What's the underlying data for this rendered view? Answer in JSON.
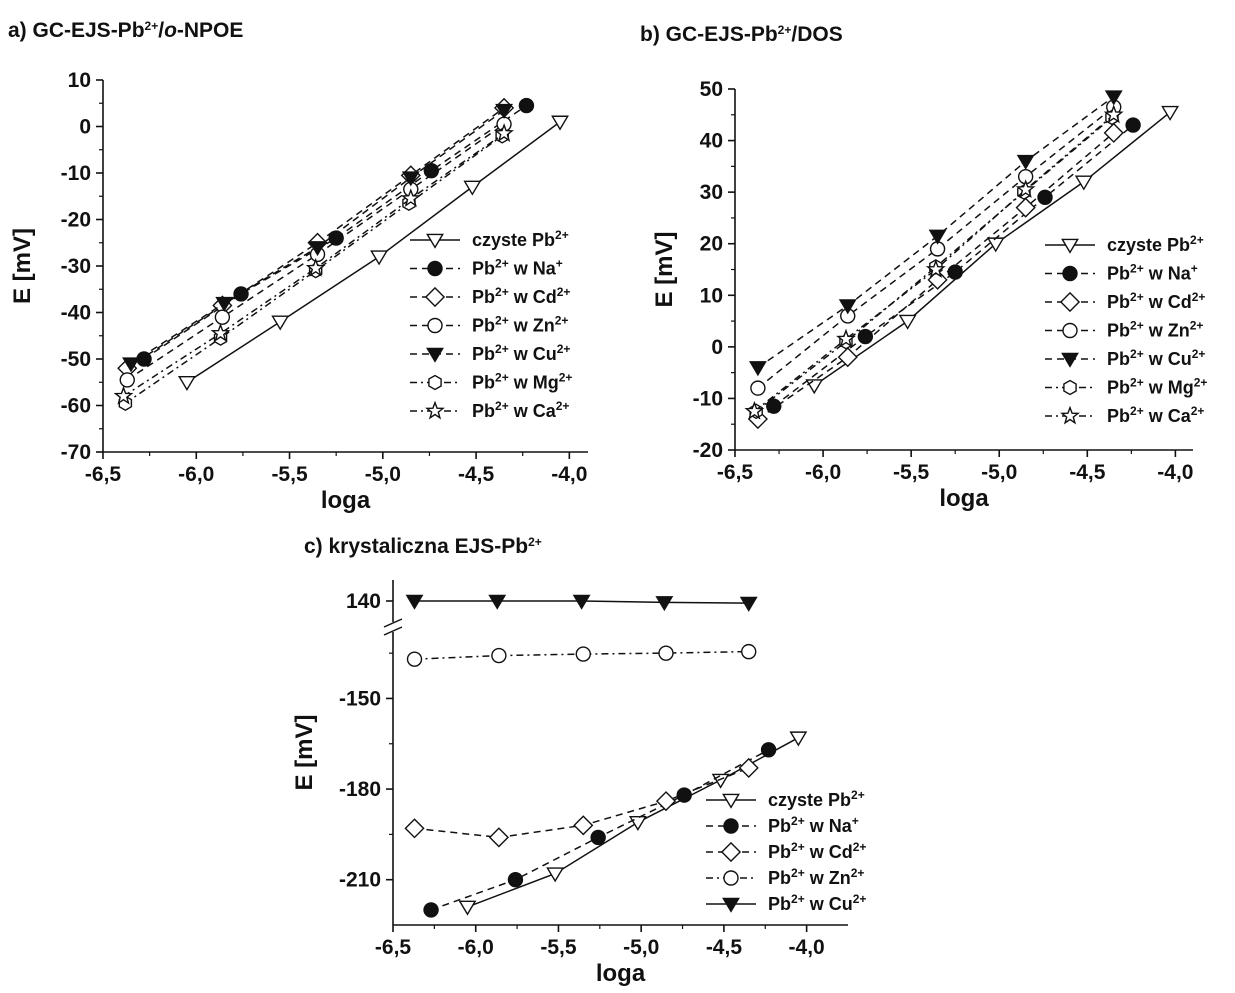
{
  "chart_data": [
    {
      "id": "a",
      "type": "line",
      "title": {
        "main": "a) GC-EJS-Pb",
        "sup": "2+",
        "after": "/",
        "ital": "o",
        "end": "-NPOE"
      },
      "xlabel": "loga",
      "ylabel": "E [mV]",
      "xlim": [
        -6.5,
        -3.9
      ],
      "ylim": [
        -70,
        10
      ],
      "xticks": [
        -6.5,
        -6.0,
        -5.5,
        -5.0,
        -4.5,
        -4.0
      ],
      "xtick_labels": [
        "-6,5",
        "-6,0",
        "-5,5",
        "-5,0",
        "-4,5",
        "-4,0"
      ],
      "yticks": [
        -70,
        -60,
        -50,
        -40,
        -30,
        -20,
        -10,
        0,
        10
      ],
      "ytick_labels": [
        "-70",
        "-60",
        "-50",
        "-40",
        "-30",
        "-20",
        "-10",
        "0",
        "10"
      ],
      "legend_placement": "right",
      "series": [
        {
          "name": "czyste Pb",
          "sup": "2+",
          "marker": "triangle-down-open",
          "dash": "solid",
          "x": [
            -6.05,
            -5.55,
            -5.02,
            -4.52,
            -4.05
          ],
          "y": [
            -55,
            -42,
            -28,
            -13,
            1
          ]
        },
        {
          "name": "Pb",
          "sup": "2+",
          "name2": " w Na",
          "sup2": "+",
          "marker": "circle-filled",
          "dash": "dash",
          "x": [
            -6.28,
            -5.76,
            -5.25,
            -4.74,
            -4.23
          ],
          "y": [
            -50,
            -36,
            -24,
            -9.5,
            4.5
          ]
        },
        {
          "name": "Pb",
          "sup": "2+",
          "name2": " w Cd",
          "sup2": "2+",
          "marker": "diamond-open",
          "dash": "dash",
          "x": [
            -6.37,
            -5.86,
            -5.35,
            -4.85,
            -4.35
          ],
          "y": [
            -52,
            -38.5,
            -25,
            -10.5,
            4
          ]
        },
        {
          "name": "Pb",
          "sup": "2+",
          "name2": " w Zn",
          "sup2": "2+",
          "marker": "circle-open",
          "dash": "dash",
          "x": [
            -6.37,
            -5.86,
            -5.35,
            -4.85,
            -4.35
          ],
          "y": [
            -54.5,
            -41,
            -27.5,
            -13.5,
            0.5
          ]
        },
        {
          "name": "Pb",
          "sup": "2+",
          "name2": " w Cu",
          "sup2": "2+",
          "marker": "triangle-down-filled",
          "dash": "dash",
          "x": [
            -6.35,
            -5.85,
            -5.35,
            -4.85,
            -4.35
          ],
          "y": [
            -51,
            -38,
            -26,
            -11,
            3.5
          ]
        },
        {
          "name": "Pb",
          "sup": "2+",
          "name2": " w Mg",
          "sup2": "2+",
          "marker": "hexagon-open",
          "dash": "dashdot",
          "x": [
            -6.38,
            -5.87,
            -5.36,
            -4.86,
            -4.36
          ],
          "y": [
            -59.5,
            -45.5,
            -31,
            -16.5,
            -2
          ]
        },
        {
          "name": "Pb",
          "sup": "2+",
          "name2": " w Ca",
          "sup2": "2+",
          "marker": "star-open",
          "dash": "dashdot",
          "x": [
            -6.39,
            -5.87,
            -5.36,
            -4.85,
            -4.35
          ],
          "y": [
            -58,
            -44.5,
            -30.5,
            -15.5,
            -1.5
          ]
        }
      ]
    },
    {
      "id": "b",
      "type": "line",
      "title": {
        "main": "b) GC-EJS-Pb",
        "sup": "2+",
        "after": "/DOS"
      },
      "xlabel": "loga",
      "ylabel": "E [mV]",
      "xlim": [
        -6.5,
        -3.9
      ],
      "ylim": [
        -20,
        50
      ],
      "xticks": [
        -6.5,
        -6.0,
        -5.5,
        -5.0,
        -4.5,
        -4.0
      ],
      "xtick_labels": [
        "-6,5",
        "-6,0",
        "-5,5",
        "-5,0",
        "-4,5",
        "-4,0"
      ],
      "yticks": [
        -20,
        -10,
        0,
        10,
        20,
        30,
        40,
        50
      ],
      "ytick_labels": [
        "-20",
        "-10",
        "0",
        "10",
        "20",
        "30",
        "40",
        "50"
      ],
      "legend_placement": "right",
      "series": [
        {
          "name": "czyste Pb",
          "sup": "2+",
          "marker": "triangle-down-open",
          "dash": "solid",
          "x": [
            -6.05,
            -5.52,
            -5.02,
            -4.52,
            -4.03
          ],
          "y": [
            -7.5,
            5,
            20,
            32,
            45.5
          ]
        },
        {
          "name": "Pb",
          "sup": "2+",
          "name2": " w Na",
          "sup2": "+",
          "marker": "circle-filled",
          "dash": "dash",
          "x": [
            -6.28,
            -5.76,
            -5.25,
            -4.74,
            -4.24
          ],
          "y": [
            -11.5,
            2,
            14.5,
            29,
            43
          ]
        },
        {
          "name": "Pb",
          "sup": "2+",
          "name2": " w Cd",
          "sup2": "2+",
          "marker": "diamond-open",
          "dash": "dash",
          "x": [
            -6.37,
            -5.86,
            -5.35,
            -4.85,
            -4.35
          ],
          "y": [
            -14,
            -2,
            13,
            27,
            41.5
          ]
        },
        {
          "name": "Pb",
          "sup": "2+",
          "name2": " w Zn",
          "sup2": "2+",
          "marker": "circle-open",
          "dash": "dash",
          "x": [
            -6.37,
            -5.86,
            -5.35,
            -4.85,
            -4.35
          ],
          "y": [
            -8,
            6,
            19,
            33,
            46.5
          ]
        },
        {
          "name": "Pb",
          "sup": "2+",
          "name2": " w Cu",
          "sup2": "2+",
          "marker": "triangle-down-filled",
          "dash": "dash",
          "x": [
            -6.37,
            -5.86,
            -5.35,
            -4.85,
            -4.35
          ],
          "y": [
            -4,
            8,
            21.5,
            36,
            48.5
          ]
        },
        {
          "name": "Pb",
          "sup": "2+",
          "name2": " w Mg",
          "sup2": "2+",
          "marker": "hexagon-open",
          "dash": "dashdot",
          "x": [
            -6.38,
            -5.87,
            -5.36,
            -4.86,
            -4.36
          ],
          "y": [
            -12.5,
            1,
            15.5,
            30,
            44.5
          ]
        },
        {
          "name": "Pb",
          "sup": "2+",
          "name2": " w Ca",
          "sup2": "2+",
          "marker": "star-open",
          "dash": "dashdot",
          "x": [
            -6.39,
            -5.87,
            -5.36,
            -4.85,
            -4.35
          ],
          "y": [
            -12.5,
            1.5,
            15,
            30.5,
            45
          ]
        }
      ]
    },
    {
      "id": "c",
      "type": "line",
      "title": {
        "main": "c) krystaliczna EJS-Pb",
        "sup": "2+"
      },
      "xlabel": "loga",
      "ylabel": "E [mV]",
      "xlim": [
        -6.5,
        -3.75
      ],
      "axis_break": "between 140 and -150",
      "upper_ylim": [
        137,
        143
      ],
      "ylim": [
        -225,
        -128
      ],
      "xticks": [
        -6.5,
        -6.0,
        -5.5,
        -5.0,
        -4.5,
        -4.0
      ],
      "xtick_labels": [
        "-6,5",
        "-6,0",
        "-5,5",
        "-5,0",
        "-4,5",
        "-4,0"
      ],
      "yticks_upper": [
        140
      ],
      "ytick_labels_upper": [
        "140"
      ],
      "yticks": [
        -150,
        -180,
        -210
      ],
      "ytick_labels": [
        "-150",
        "-180",
        "-210"
      ],
      "legend_placement": "lower-right",
      "series": [
        {
          "name": "czyste Pb",
          "sup": "2+",
          "marker": "triangle-down-open",
          "dash": "solid",
          "axis": "lower",
          "x": [
            -6.05,
            -5.52,
            -5.02,
            -4.52,
            -4.05
          ],
          "y": [
            -219,
            -208,
            -191,
            -177,
            -163
          ]
        },
        {
          "name": "Pb",
          "sup": "2+",
          "name2": " w Na",
          "sup2": "+",
          "marker": "circle-filled",
          "dash": "dash",
          "axis": "lower",
          "x": [
            -6.27,
            -5.76,
            -5.26,
            -4.74,
            -4.23
          ],
          "y": [
            -220,
            -210,
            -196,
            -182,
            -167
          ]
        },
        {
          "name": "Pb",
          "sup": "2+",
          "name2": " w Cd",
          "sup2": "2+",
          "marker": "diamond-open",
          "dash": "dash",
          "axis": "lower",
          "x": [
            -6.37,
            -5.86,
            -5.35,
            -4.85,
            -4.35
          ],
          "y": [
            -193,
            -196,
            -192,
            -184,
            -173
          ]
        },
        {
          "name": "Pb",
          "sup": "2+",
          "name2": " w Zn",
          "sup2": "2+",
          "marker": "circle-open",
          "dash": "dashdot",
          "axis": "lower",
          "x": [
            -6.37,
            -5.86,
            -5.35,
            -4.85,
            -4.35
          ],
          "y": [
            -137,
            -135.8,
            -135.3,
            -135,
            -134.5
          ]
        },
        {
          "name": "Pb",
          "sup": "2+",
          "name2": " w Cu",
          "sup2": "2+",
          "marker": "triangle-down-filled",
          "dash": "solid",
          "axis": "upper",
          "x": [
            -6.37,
            -5.87,
            -5.36,
            -4.86,
            -4.35
          ],
          "y": [
            140,
            140,
            140,
            139.8,
            139.7
          ]
        }
      ]
    }
  ]
}
